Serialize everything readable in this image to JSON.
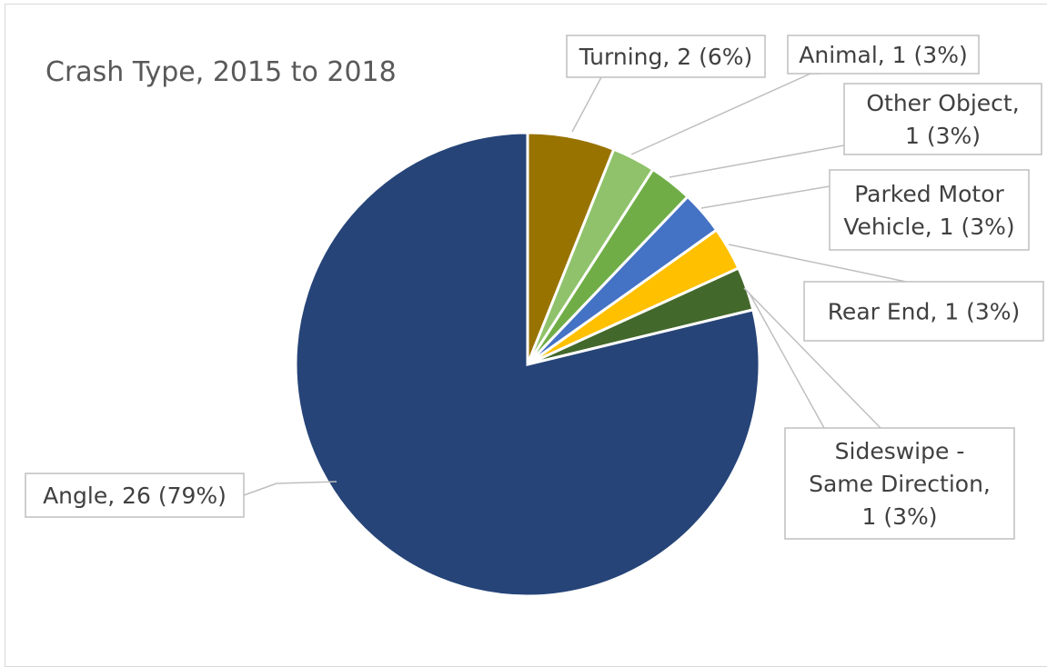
{
  "chart_data": {
    "type": "pie",
    "title": "Crash Type, 2015 to 2018",
    "slices": [
      {
        "name": "Turning",
        "value": 2,
        "percent": 6,
        "color": "#997300",
        "label_lines": [
          "Turning, 2 (6%)"
        ]
      },
      {
        "name": "Animal",
        "value": 1,
        "percent": 3,
        "color": "#8FC26A",
        "label_lines": [
          "Animal, 1 (3%)"
        ]
      },
      {
        "name": "Other Object",
        "value": 1,
        "percent": 3,
        "color": "#70AD47",
        "label_lines": [
          "Other Object,",
          "1 (3%)"
        ]
      },
      {
        "name": "Parked Motor Vehicle",
        "value": 1,
        "percent": 3,
        "color": "#4472C4",
        "label_lines": [
          "Parked Motor",
          "Vehicle, 1 (3%)"
        ]
      },
      {
        "name": "Rear End",
        "value": 1,
        "percent": 3,
        "color": "#FFC000",
        "label_lines": [
          "Rear End, 1 (3%)"
        ]
      },
      {
        "name": "Sideswipe - Same Direction",
        "value": 1,
        "percent": 3,
        "color": "#43682B",
        "label_lines": [
          "Sideswipe -",
          "Same Direction,",
          "1 (3%)"
        ]
      },
      {
        "name": "Angle",
        "value": 26,
        "percent": 79,
        "color": "#264478",
        "label_lines": [
          "Angle, 26 (79%)"
        ]
      }
    ],
    "legend": "none",
    "data_labels": "outside-with-leader-lines"
  }
}
